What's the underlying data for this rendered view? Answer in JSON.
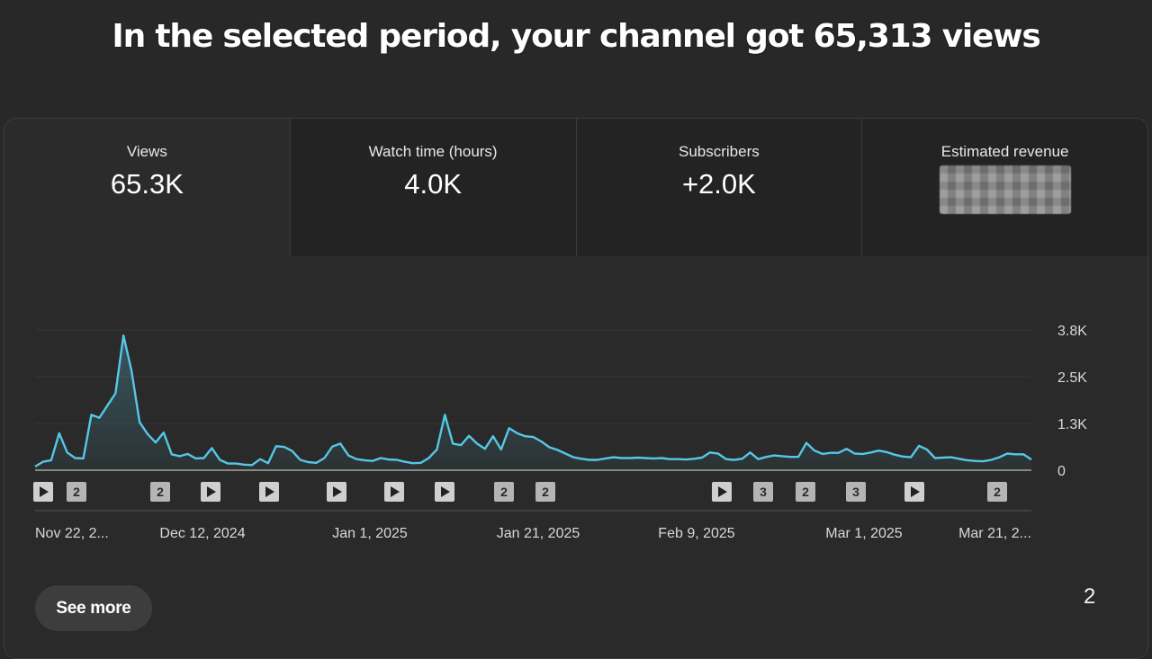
{
  "headline": "In the selected period, your channel got 65,313 views",
  "metrics": [
    {
      "label": "Views",
      "value": "65.3K"
    },
    {
      "label": "Watch time (hours)",
      "value": "4.0K"
    },
    {
      "label": "Subscribers",
      "value": "+2.0K"
    },
    {
      "label": "Estimated revenue",
      "value": ""
    }
  ],
  "chart_data": {
    "type": "area",
    "series": [
      {
        "values": [
          100,
          230,
          270,
          1000,
          480,
          330,
          320,
          1500,
          1420,
          1750,
          2080,
          3650,
          2700,
          1300,
          980,
          750,
          1020,
          430,
          380,
          440,
          320,
          330,
          600,
          280,
          180,
          180,
          150,
          140,
          300,
          190,
          650,
          630,
          520,
          280,
          220,
          200,
          330,
          640,
          720,
          400,
          300,
          270,
          250,
          330,
          290,
          280,
          230,
          190,
          200,
          330,
          560,
          1500,
          720,
          680,
          930,
          720,
          580,
          920,
          560,
          1140,
          1000,
          920,
          900,
          780,
          620,
          550,
          450,
          350,
          310,
          280,
          280,
          320,
          350,
          330,
          330,
          340,
          330,
          320,
          330,
          300,
          300,
          290,
          310,
          340,
          480,
          450,
          300,
          280,
          310,
          480,
          300,
          360,
          400,
          380,
          360,
          360,
          740,
          530,
          440,
          470,
          470,
          580,
          450,
          440,
          480,
          530,
          490,
          420,
          370,
          350,
          660,
          560,
          330,
          340,
          350,
          310,
          270,
          250,
          240,
          280,
          350,
          450,
          430,
          430,
          290
        ]
      }
    ],
    "x_ticks": [
      "Nov 22, 2...",
      "Dec 12, 2024",
      "Jan 1, 2025",
      "Jan 21, 2025",
      "Feb 9, 2025",
      "Mar 1, 2025",
      "Mar 21, 2..."
    ],
    "y_ticks": [
      "3.8K",
      "2.5K",
      "1.3K",
      "0"
    ],
    "ylim": [
      0,
      3800
    ],
    "line_color": "#56c7e6",
    "markers": [
      {
        "type": "play",
        "label": ""
      },
      {
        "type": "count",
        "label": "2"
      },
      {
        "type": "count",
        "label": "2"
      },
      {
        "type": "play",
        "label": ""
      },
      {
        "type": "play",
        "label": ""
      },
      {
        "type": "play",
        "label": ""
      },
      {
        "type": "play",
        "label": ""
      },
      {
        "type": "play",
        "label": ""
      },
      {
        "type": "count",
        "label": "2"
      },
      {
        "type": "count",
        "label": "2"
      },
      {
        "type": "play",
        "label": ""
      },
      {
        "type": "count",
        "label": "3"
      },
      {
        "type": "count",
        "label": "2"
      },
      {
        "type": "count",
        "label": "3"
      },
      {
        "type": "play",
        "label": ""
      },
      {
        "type": "count",
        "label": "2"
      }
    ]
  },
  "see_more_label": "See more",
  "page_number": "2",
  "icons": {
    "video_marker": "play-icon"
  }
}
